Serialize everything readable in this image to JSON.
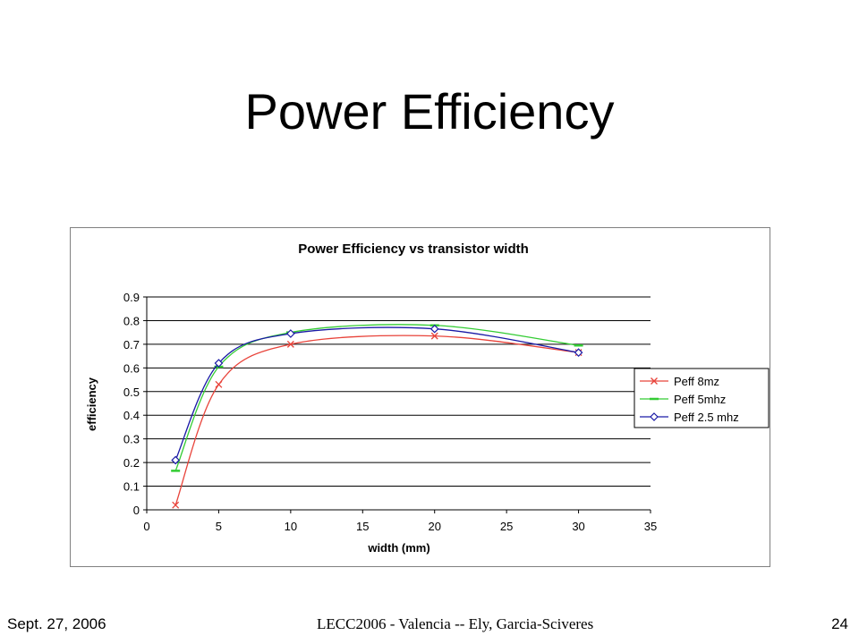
{
  "slide": {
    "title": "Power Efficiency",
    "footer_left": "Sept. 27, 2006",
    "footer_center": "LECC2006 - Valencia   --   Ely, Garcia-Sciveres",
    "footer_right": "24"
  },
  "chart_data": {
    "type": "line",
    "title": "Power Efficiency vs transistor width",
    "xlabel": "width (mm)",
    "ylabel": "efficiency",
    "xlim": [
      0,
      35
    ],
    "ylim": [
      0,
      0.9
    ],
    "xticks": [
      0,
      5,
      10,
      15,
      20,
      25,
      30,
      35
    ],
    "yticks": [
      0,
      0.1,
      0.2,
      0.3,
      0.4,
      0.5,
      0.6,
      0.7,
      0.8,
      0.9
    ],
    "grid": "horizontal",
    "legend_position": "right",
    "series": [
      {
        "name": "Peff 8mz",
        "color": "#e8433a",
        "marker": "x",
        "x": [
          2,
          5,
          10,
          20,
          30
        ],
        "y": [
          0.02,
          0.53,
          0.7,
          0.735,
          0.665
        ]
      },
      {
        "name": "Peff 5mhz",
        "color": "#33cc33",
        "marker": "dash",
        "x": [
          2,
          5,
          10,
          20,
          30
        ],
        "y": [
          0.165,
          0.605,
          0.75,
          0.78,
          0.695
        ]
      },
      {
        "name": "Peff 2.5 mhz",
        "color": "#1a1aa6",
        "marker": "diamond",
        "x": [
          2,
          5,
          10,
          20,
          30
        ],
        "y": [
          0.21,
          0.62,
          0.745,
          0.765,
          0.665
        ]
      }
    ]
  }
}
